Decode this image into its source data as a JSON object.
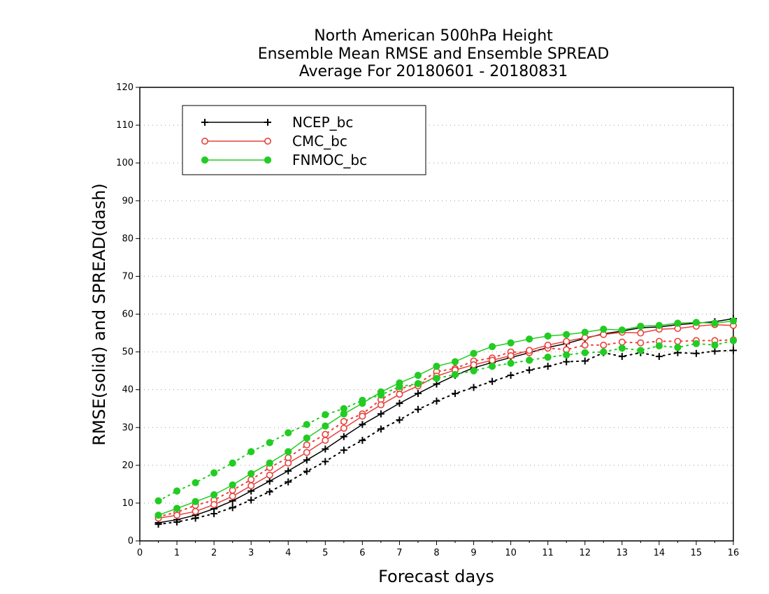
{
  "chart_data": {
    "type": "line",
    "title_lines": [
      "North American 500hPa Height",
      "Ensemble Mean RMSE and Ensemble SPREAD",
      "Average For 20180601 - 20180831"
    ],
    "xlabel": "Forecast days",
    "ylabel": "RMSE(solid) and SPREAD(dash)",
    "xlim": [
      0,
      16
    ],
    "ylim": [
      0,
      120
    ],
    "xticks": [
      0,
      1,
      2,
      3,
      4,
      5,
      6,
      7,
      8,
      9,
      10,
      11,
      12,
      13,
      14,
      15,
      16
    ],
    "yticks": [
      0,
      10,
      20,
      30,
      40,
      50,
      60,
      70,
      80,
      90,
      100,
      110,
      120
    ],
    "grid": "horizontal-dotted",
    "legend_position": "top-left",
    "x": [
      0.5,
      1,
      1.5,
      2,
      2.5,
      3,
      3.5,
      4,
      4.5,
      5,
      5.5,
      6,
      6.5,
      7,
      7.5,
      8,
      8.5,
      9,
      9.5,
      10,
      10.5,
      11,
      11.5,
      12,
      12.5,
      13,
      13.5,
      14,
      14.5,
      15,
      15.5,
      16
    ],
    "series": [
      {
        "name": "NCEP_bc",
        "color": "#000000",
        "marker": "plus",
        "rmse": [
          4.8,
          5.6,
          6.8,
          8.5,
          10.6,
          13.2,
          15.8,
          18.5,
          21.4,
          24.3,
          27.6,
          30.8,
          33.6,
          36.4,
          39.0,
          41.5,
          43.8,
          45.8,
          47.2,
          48.5,
          49.8,
          51.2,
          52.2,
          53.6,
          54.8,
          55.5,
          56.4,
          56.6,
          57.2,
          57.6,
          58.0,
          58.8
        ],
        "spread": [
          4.4,
          5.0,
          6.0,
          7.2,
          8.8,
          10.8,
          13.0,
          15.6,
          18.4,
          21.0,
          24.0,
          26.6,
          29.6,
          32.0,
          34.8,
          37.0,
          39.0,
          40.6,
          42.2,
          43.8,
          45.2,
          46.2,
          47.4,
          47.6,
          49.8,
          48.8,
          49.8,
          48.8,
          49.8,
          49.6,
          50.2,
          50.4
        ]
      },
      {
        "name": "CMC_bc",
        "color": "#e8403a",
        "marker": "open-circle",
        "rmse": [
          6.0,
          6.8,
          7.8,
          9.6,
          11.8,
          14.6,
          17.4,
          20.6,
          23.4,
          26.6,
          29.8,
          33.0,
          36.0,
          38.8,
          41.0,
          43.6,
          45.2,
          46.6,
          47.8,
          49.0,
          50.4,
          51.8,
          52.8,
          53.8,
          54.6,
          55.2,
          55.0,
          56.0,
          56.2,
          56.8,
          57.2,
          57.0
        ],
        "spread": [
          6.4,
          7.6,
          9.4,
          10.8,
          13.4,
          16.2,
          19.4,
          22.0,
          25.4,
          28.2,
          31.6,
          33.6,
          37.4,
          40.2,
          41.6,
          44.8,
          45.6,
          47.6,
          48.4,
          50.0,
          49.8,
          51.0,
          50.6,
          51.8,
          51.8,
          52.6,
          52.4,
          52.8,
          52.8,
          53.0,
          53.0,
          53.2
        ]
      },
      {
        "name": "FNMOC_bc",
        "color": "#22cc22",
        "marker": "filled-circle",
        "rmse": [
          6.8,
          8.6,
          10.4,
          12.2,
          14.8,
          17.8,
          20.6,
          23.6,
          27.2,
          30.4,
          33.6,
          36.4,
          39.4,
          41.8,
          43.8,
          46.2,
          47.4,
          49.6,
          51.4,
          52.4,
          53.4,
          54.2,
          54.6,
          55.2,
          56.0,
          55.8,
          56.8,
          57.0,
          57.6,
          57.8,
          57.6,
          58.2
        ],
        "spread": [
          10.6,
          13.2,
          15.4,
          18.0,
          20.6,
          23.6,
          26.0,
          28.6,
          30.8,
          33.4,
          35.0,
          37.2,
          38.6,
          40.8,
          41.6,
          43.0,
          44.0,
          45.0,
          46.2,
          47.0,
          47.8,
          48.6,
          49.2,
          49.8,
          50.0,
          51.0,
          50.4,
          51.6,
          51.2,
          52.2,
          51.8,
          53.0
        ]
      }
    ]
  }
}
